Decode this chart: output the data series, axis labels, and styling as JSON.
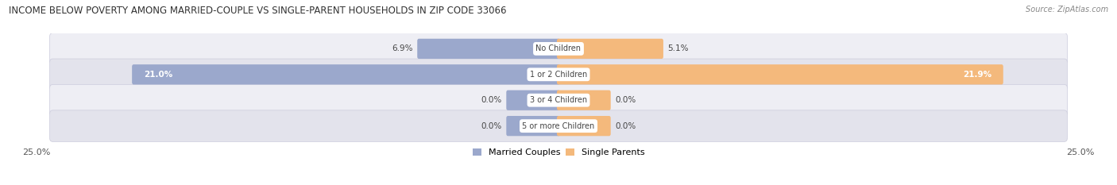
{
  "title": "INCOME BELOW POVERTY AMONG MARRIED-COUPLE VS SINGLE-PARENT HOUSEHOLDS IN ZIP CODE 33066",
  "source": "Source: ZipAtlas.com",
  "categories": [
    "No Children",
    "1 or 2 Children",
    "3 or 4 Children",
    "5 or more Children"
  ],
  "married_values": [
    6.9,
    21.0,
    0.0,
    0.0
  ],
  "single_values": [
    5.1,
    21.9,
    0.0,
    0.0
  ],
  "max_val": 25.0,
  "married_color": "#9BA8CC",
  "single_color": "#F4B97C",
  "row_bg_even": "#EEEEF4",
  "row_bg_odd": "#E3E3EC",
  "title_fontsize": 8.5,
  "source_fontsize": 7,
  "bar_label_fontsize": 7.5,
  "category_fontsize": 7,
  "legend_fontsize": 8,
  "axis_label_fontsize": 8,
  "stub_size": 2.5
}
